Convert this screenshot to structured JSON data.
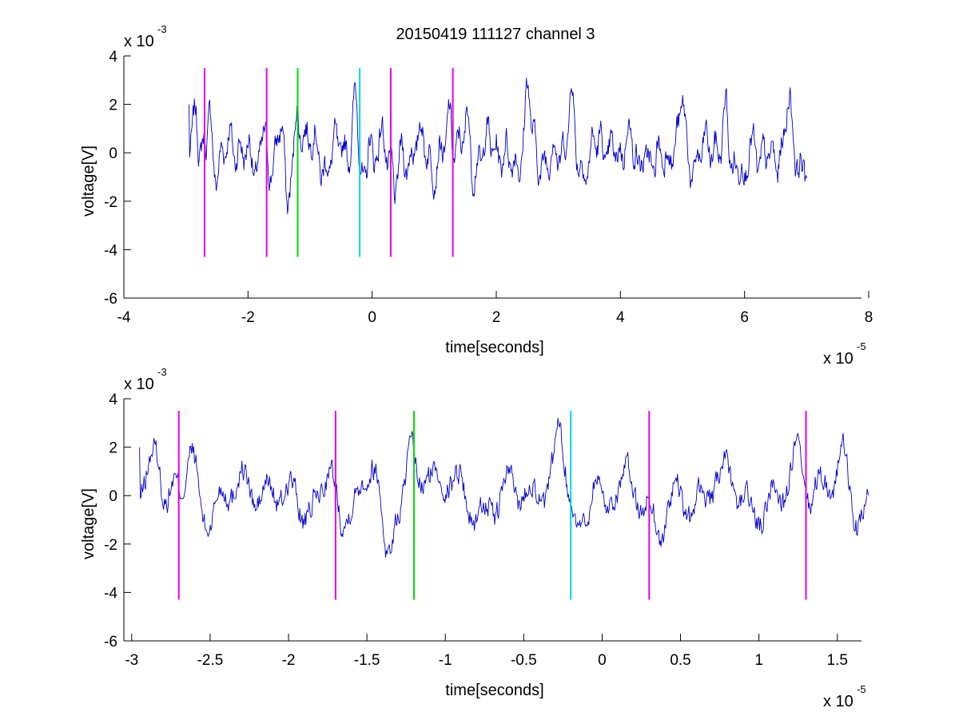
{
  "chart_data": [
    {
      "type": "line",
      "title": "20150419 111127 channel 3",
      "xlabel": "time[seconds]",
      "ylabel": "voltage[V]",
      "x_exponent_base": "x 10",
      "x_exponent": "-5",
      "y_exponent_base": "x 10",
      "y_exponent": "-3",
      "xlim": [
        -4,
        8
      ],
      "ylim": [
        -6,
        4
      ],
      "xticks": [
        -4,
        -2,
        0,
        2,
        4,
        6,
        8
      ],
      "xtick_labels": [
        "-4",
        "-2",
        "0",
        "2",
        "4",
        "6",
        "8"
      ],
      "yticks": [
        -6,
        -4,
        -2,
        0,
        2,
        4
      ],
      "ytick_labels": [
        "-6",
        "-4",
        "-2",
        "0",
        "2",
        "4"
      ],
      "grid": false,
      "series": [
        {
          "color": "#0000cc",
          "x_range": [
            -2.95,
            7.0
          ],
          "y_range_approx": [
            -3.9,
            3.2
          ]
        }
      ],
      "markers": [
        {
          "x": -2.7,
          "color": "#e600e6",
          "y_range": [
            -4.3,
            3.5
          ]
        },
        {
          "x": -1.7,
          "color": "#e600e6",
          "y_range": [
            -4.3,
            3.5
          ]
        },
        {
          "x": -1.2,
          "color": "#00dd00",
          "y_range": [
            -4.3,
            3.5
          ]
        },
        {
          "x": -0.2,
          "color": "#00d8e8",
          "y_range": [
            -4.3,
            3.5
          ]
        },
        {
          "x": 0.3,
          "color": "#e600e6",
          "y_range": [
            -4.3,
            3.5
          ]
        },
        {
          "x": 1.3,
          "color": "#e600e6",
          "y_range": [
            -4.3,
            3.5
          ]
        }
      ]
    },
    {
      "type": "line",
      "xlabel": "time[seconds]",
      "ylabel": "voltage[V]",
      "x_exponent_base": "x 10",
      "x_exponent": "-5",
      "y_exponent_base": "x 10",
      "y_exponent": "-3",
      "xlim": [
        -3.05,
        1.7
      ],
      "ylim": [
        -6,
        4
      ],
      "xticks": [
        -3,
        -2.5,
        -2,
        -1.5,
        -1,
        -0.5,
        0,
        0.5,
        1,
        1.5
      ],
      "xtick_labels": [
        "-3",
        "-2.5",
        "-2",
        "-1.5",
        "-1",
        "-0.5",
        "0",
        "0.5",
        "1",
        "1.5"
      ],
      "yticks": [
        -6,
        -4,
        -2,
        0,
        2,
        4
      ],
      "ytick_labels": [
        "-6",
        "-4",
        "-2",
        "0",
        "2",
        "4"
      ],
      "grid": false,
      "series": [
        {
          "color": "#0000cc",
          "x_range": [
            -2.95,
            1.7
          ],
          "y_range_approx": [
            -3.9,
            3.2
          ]
        }
      ],
      "markers": [
        {
          "x": -2.7,
          "color": "#e600e6",
          "y_range": [
            -4.3,
            3.5
          ]
        },
        {
          "x": -1.7,
          "color": "#e600e6",
          "y_range": [
            -4.3,
            3.5
          ]
        },
        {
          "x": -1.2,
          "color": "#00dd00",
          "y_range": [
            -4.3,
            3.5
          ]
        },
        {
          "x": -0.2,
          "color": "#00d8e8",
          "y_range": [
            -4.3,
            3.5
          ]
        },
        {
          "x": 0.3,
          "color": "#e600e6",
          "y_range": [
            -4.3,
            3.5
          ]
        },
        {
          "x": 1.3,
          "color": "#e600e6",
          "y_range": [
            -4.3,
            3.5
          ]
        }
      ]
    }
  ]
}
